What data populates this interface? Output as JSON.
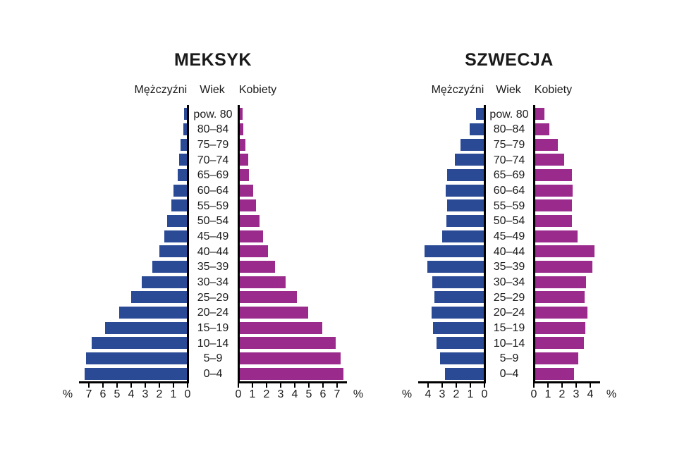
{
  "page": {
    "background_color": "#ffffff",
    "text_color": "#1a1a1a"
  },
  "colors": {
    "male_bar": "#2A4A96",
    "female_bar": "#9A2A8C",
    "axis_line": "#000000"
  },
  "chart_data": [
    {
      "type": "bar",
      "subtype": "population-pyramid",
      "title": "MEKSYK",
      "header": {
        "male": "Mężczyźni",
        "center": "Wiek",
        "female": "Kobiety"
      },
      "unit": "%",
      "categories_top_to_bottom": [
        "pow. 80",
        "80–84",
        "75–79",
        "70–74",
        "65–69",
        "60–64",
        "55–59",
        "50–54",
        "45–49",
        "40–44",
        "35–39",
        "30–34",
        "25–29",
        "20–24",
        "15–19",
        "10–14",
        "5–9",
        "0–4"
      ],
      "series": [
        {
          "name": "Mężczyźni",
          "side": "left",
          "color": "#2A4A96",
          "values": [
            0.25,
            0.3,
            0.5,
            0.6,
            0.7,
            1.0,
            1.15,
            1.45,
            1.65,
            2.0,
            2.5,
            3.25,
            4.0,
            4.85,
            5.85,
            6.8,
            7.2,
            7.3
          ]
        },
        {
          "name": "Kobiety",
          "side": "right",
          "color": "#9A2A8C",
          "values": [
            0.3,
            0.35,
            0.5,
            0.7,
            0.75,
            1.05,
            1.25,
            1.5,
            1.75,
            2.1,
            2.6,
            3.35,
            4.15,
            4.95,
            5.95,
            6.9,
            7.25,
            7.45
          ]
        }
      ],
      "axis": {
        "min": 0,
        "max": 7,
        "tick_step": 1,
        "left_ticks": [
          "7",
          "6",
          "5",
          "4",
          "3",
          "2",
          "1",
          "0"
        ],
        "right_ticks": [
          "0",
          "1",
          "2",
          "3",
          "4",
          "5",
          "6",
          "7"
        ],
        "percent_symbol": "%"
      }
    },
    {
      "type": "bar",
      "subtype": "population-pyramid",
      "title": "SZWECJA",
      "header": {
        "male": "Mężczyźni",
        "center": "Wiek",
        "female": "Kobiety"
      },
      "unit": "%",
      "categories_top_to_bottom": [
        "pow. 80",
        "80–84",
        "75–79",
        "70–74",
        "65–69",
        "60–64",
        "55–59",
        "50–54",
        "45–49",
        "40–44",
        "35–39",
        "30–34",
        "25–29",
        "20–24",
        "15–19",
        "10–14",
        "5–9",
        "0–4"
      ],
      "series": [
        {
          "name": "Mężczyźni",
          "side": "left",
          "color": "#2A4A96",
          "values": [
            0.6,
            1.05,
            1.7,
            2.1,
            2.65,
            2.75,
            2.65,
            2.7,
            3.0,
            4.25,
            4.05,
            3.7,
            3.55,
            3.75,
            3.65,
            3.4,
            3.15,
            2.8
          ]
        },
        {
          "name": "Kobiety",
          "side": "right",
          "color": "#9A2A8C",
          "values": [
            0.75,
            1.1,
            1.7,
            2.15,
            2.7,
            2.75,
            2.7,
            2.7,
            3.1,
            4.3,
            4.15,
            3.7,
            3.6,
            3.8,
            3.65,
            3.55,
            3.15,
            2.85
          ]
        }
      ],
      "axis": {
        "min": 0,
        "max": 4,
        "tick_step": 1,
        "left_ticks": [
          "4",
          "3",
          "2",
          "1",
          "0"
        ],
        "right_ticks": [
          "0",
          "1",
          "2",
          "3",
          "4"
        ],
        "percent_symbol": "%"
      }
    }
  ]
}
